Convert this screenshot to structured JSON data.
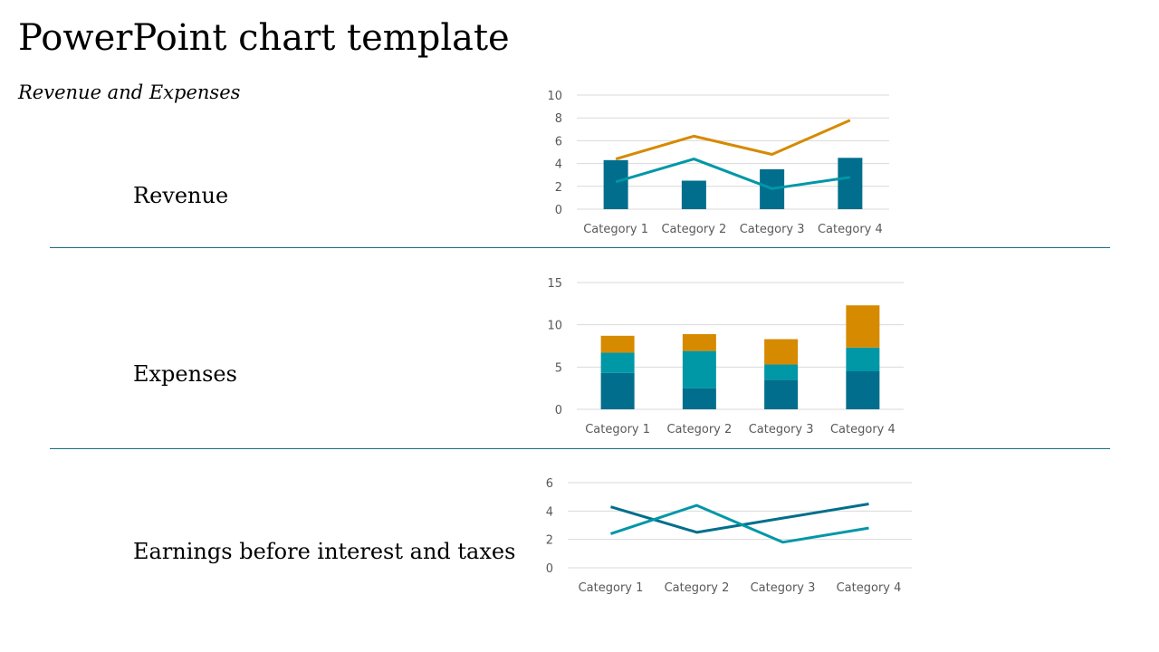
{
  "slide": {
    "title": "PowerPoint chart template",
    "subtitle": "Revenue and Expenses",
    "rows": [
      {
        "label": "Revenue"
      },
      {
        "label": "Expenses"
      },
      {
        "label": "Earnings before interest and taxes"
      }
    ]
  },
  "colors": {
    "dark_teal": "#006e8c",
    "teal": "#0097a7",
    "orange": "#d68a00",
    "divider": "#1a6e86",
    "gridline": "#d9d9d9"
  },
  "chart_data": [
    {
      "type": "bar",
      "categories": [
        "Category 1",
        "Category 2",
        "Category 3",
        "Category 4"
      ],
      "ylim": [
        0,
        10
      ],
      "yticks": [
        0,
        2,
        4,
        6,
        8,
        10
      ],
      "grid": true,
      "series": [
        {
          "kind": "bar",
          "values": [
            4.3,
            2.5,
            3.5,
            4.5
          ],
          "color": "#006e8c"
        },
        {
          "kind": "line",
          "values": [
            2.4,
            4.4,
            1.8,
            2.8
          ],
          "color": "#0097a7"
        },
        {
          "kind": "line",
          "values": [
            4.4,
            6.4,
            4.8,
            7.8
          ],
          "color": "#d68a00"
        }
      ]
    },
    {
      "type": "bar",
      "stacked": true,
      "categories": [
        "Category 1",
        "Category 2",
        "Category 3",
        "Category 4"
      ],
      "ylim": [
        0,
        15
      ],
      "yticks": [
        0,
        5,
        10,
        15
      ],
      "grid": true,
      "series": [
        {
          "values": [
            4.3,
            2.5,
            3.5,
            4.5
          ],
          "color": "#006e8c"
        },
        {
          "values": [
            2.4,
            4.4,
            1.8,
            2.8
          ],
          "color": "#0097a7"
        },
        {
          "values": [
            2.0,
            2.0,
            3.0,
            5.0
          ],
          "color": "#d68a00"
        }
      ]
    },
    {
      "type": "line",
      "categories": [
        "Category 1",
        "Category 2",
        "Category 3",
        "Category 4"
      ],
      "ylim": [
        0,
        6
      ],
      "yticks": [
        0,
        2,
        4,
        6
      ],
      "grid": true,
      "series": [
        {
          "values": [
            4.3,
            2.5,
            3.5,
            4.5
          ],
          "color": "#006e8c"
        },
        {
          "values": [
            2.4,
            4.4,
            1.8,
            2.8
          ],
          "color": "#0097a7"
        }
      ]
    }
  ]
}
